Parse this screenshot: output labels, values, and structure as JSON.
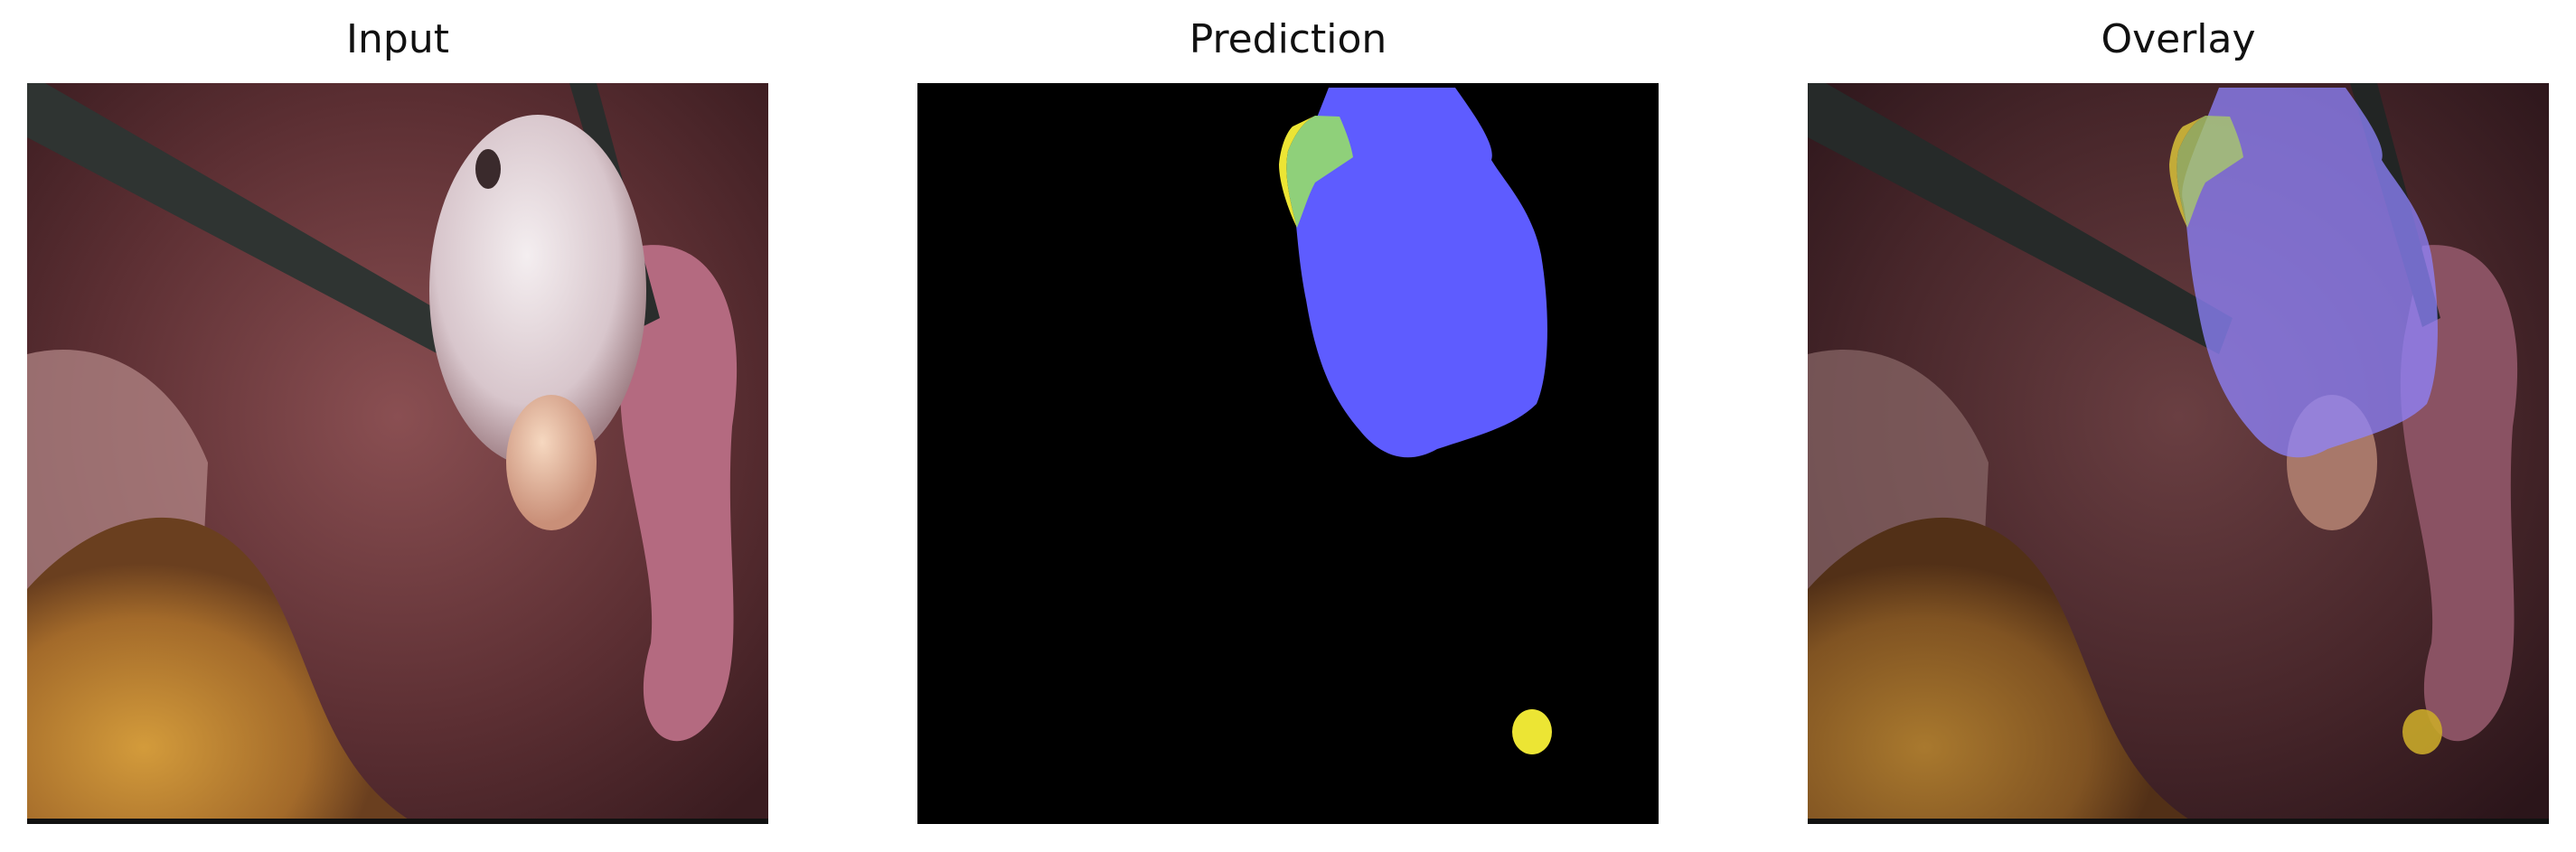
{
  "panels": [
    {
      "title": "Input"
    },
    {
      "title": "Prediction"
    },
    {
      "title": "Overlay"
    }
  ],
  "colors": {
    "background": "#ffffff",
    "prediction_background": "#000000",
    "segment_main": "#5e5cff",
    "segment_yellow": "#ece534",
    "segment_green": "#8fd07a"
  }
}
